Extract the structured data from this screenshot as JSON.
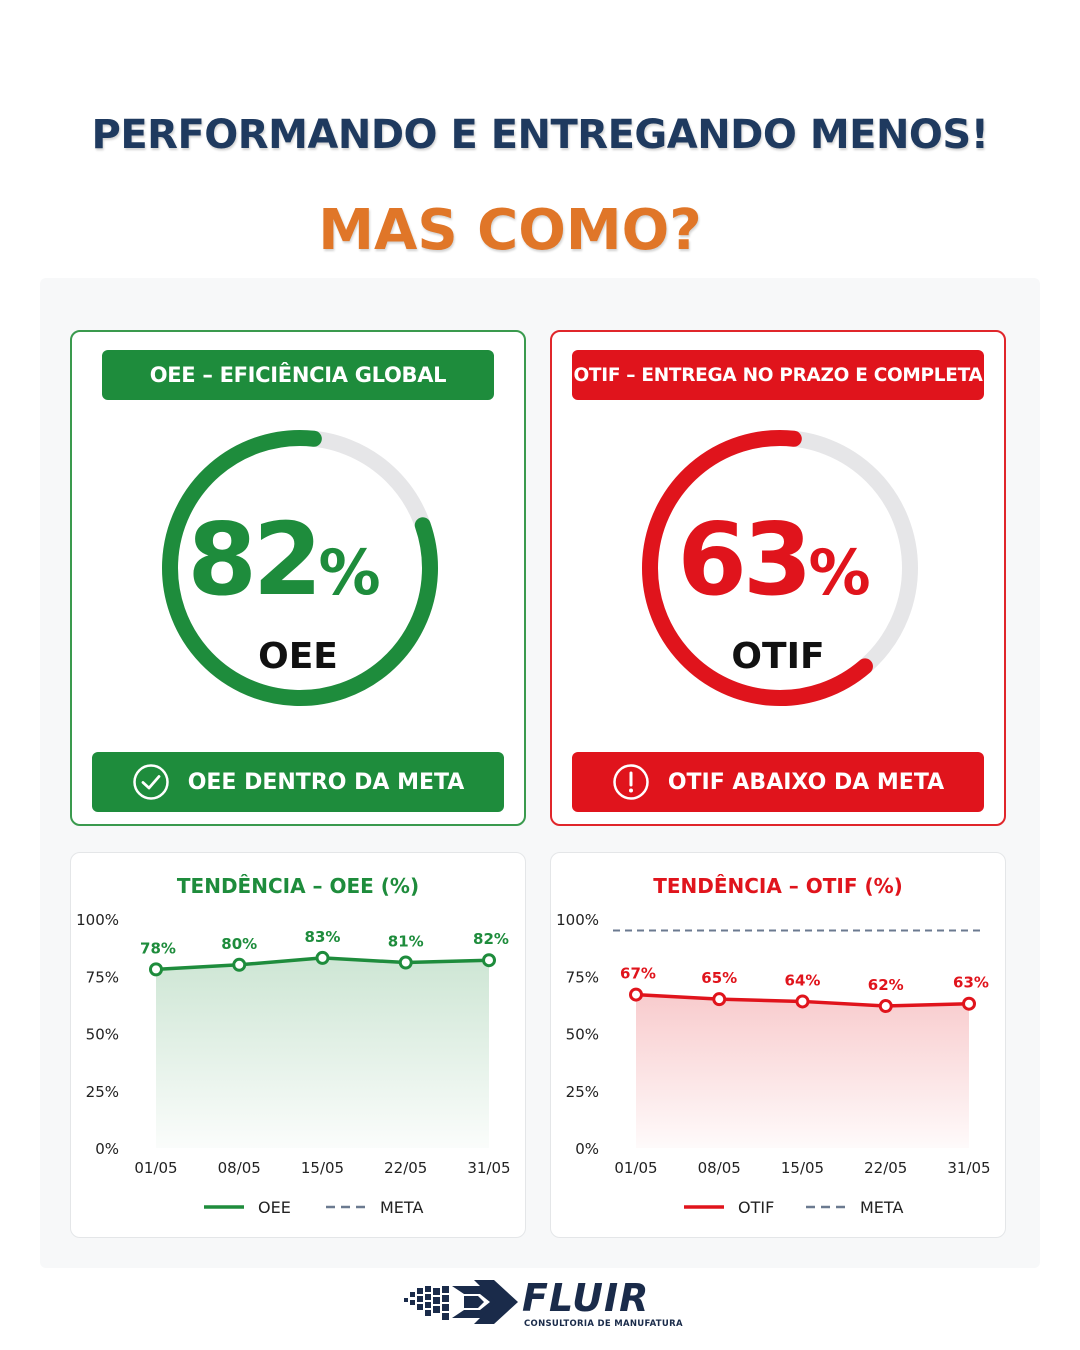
{
  "headline": {
    "line1": "PERFORMANDO E ENTREGANDO MENOS!",
    "line2": "MAS COMO?"
  },
  "oee_card": {
    "title": "OEE – EFICIÊNCIA GLOBAL",
    "value": 82,
    "value_text": "82",
    "pct_symbol": "%",
    "label": "OEE",
    "status": "OEE DENTRO DA META",
    "status_icon": "check-circle-icon",
    "color": "#1e8c3c"
  },
  "otif_card": {
    "title": "OTIF – ENTREGA NO PRAZO E COMPLETA",
    "value": 63,
    "value_text": "63",
    "pct_symbol": "%",
    "label": "OTIF",
    "status": "OTIF ABAIXO DA META",
    "status_icon": "exclamation-circle-icon",
    "color": "#e0141c"
  },
  "chart_data": [
    {
      "type": "line",
      "title": "TENDÊNCIA – OEE (%)",
      "x": [
        "01/05",
        "08/05",
        "15/05",
        "22/05",
        "31/05"
      ],
      "y_ticks": [
        "100%",
        "75%",
        "50%",
        "25%",
        "0%"
      ],
      "ylim": [
        0,
        100
      ],
      "series": [
        {
          "name": "OEE",
          "values": [
            78,
            80,
            83,
            81,
            82
          ],
          "labels": [
            "78%",
            "80%",
            "83%",
            "81%",
            "82%"
          ],
          "color": "#1e8c3c"
        }
      ],
      "legend": [
        {
          "label": "OEE",
          "style": "solid",
          "color": "#1e8c3c"
        },
        {
          "label": "META",
          "style": "dashed",
          "color": "#6b7a90"
        }
      ],
      "legend_position": "bottom",
      "meta_line": null
    },
    {
      "type": "line",
      "title": "TENDÊNCIA – OTIF (%)",
      "x": [
        "01/05",
        "08/05",
        "15/05",
        "22/05",
        "31/05"
      ],
      "y_ticks": [
        "100%",
        "75%",
        "50%",
        "25%",
        "0%"
      ],
      "ylim": [
        0,
        100
      ],
      "series": [
        {
          "name": "OTIF",
          "values": [
            67,
            65,
            64,
            62,
            63
          ],
          "labels": [
            "67%",
            "65%",
            "64%",
            "62%",
            "63%"
          ],
          "color": "#e0141c"
        }
      ],
      "legend": [
        {
          "label": "OTIF",
          "style": "solid",
          "color": "#e0141c"
        },
        {
          "label": "META",
          "style": "dashed",
          "color": "#6b7a90"
        }
      ],
      "legend_position": "bottom",
      "meta_line": 95
    }
  ],
  "brand": {
    "name": "FLUIR",
    "tagline": "CONSULTORIA DE MANUFATURA"
  }
}
